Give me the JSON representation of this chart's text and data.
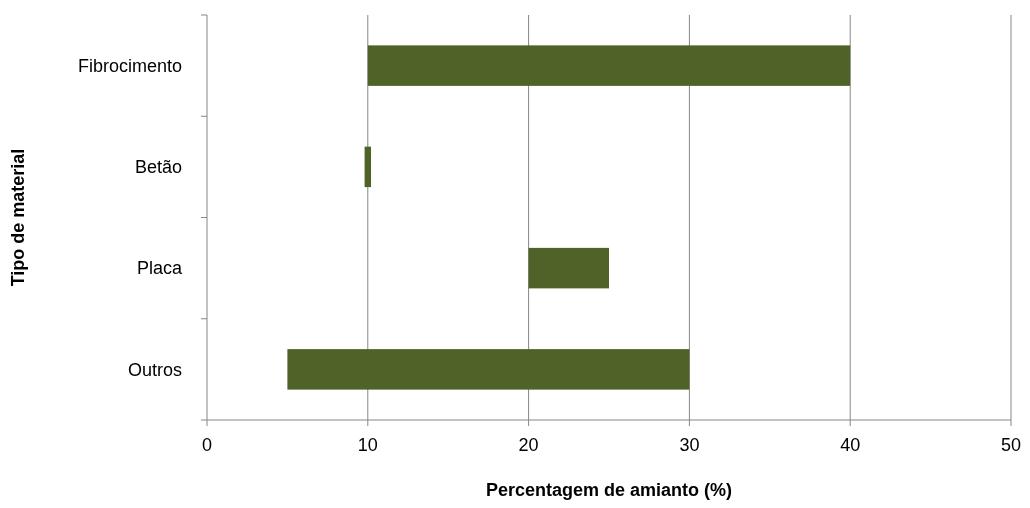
{
  "chart_data": {
    "type": "bar",
    "orientation": "horizontal",
    "categories": [
      "Fibrocimento",
      "Betão",
      "Placa",
      "Outros"
    ],
    "values": [
      30,
      0.4,
      5,
      25
    ],
    "base": [
      10,
      9.8,
      20,
      5
    ],
    "color": "#4f6228",
    "xlim": [
      0,
      50
    ],
    "xticks": [
      0,
      10,
      20,
      30,
      40,
      50
    ],
    "grid": "x",
    "xlabel": "Percentagem de amianto (%)",
    "ylabel": "Tipo de material"
  }
}
